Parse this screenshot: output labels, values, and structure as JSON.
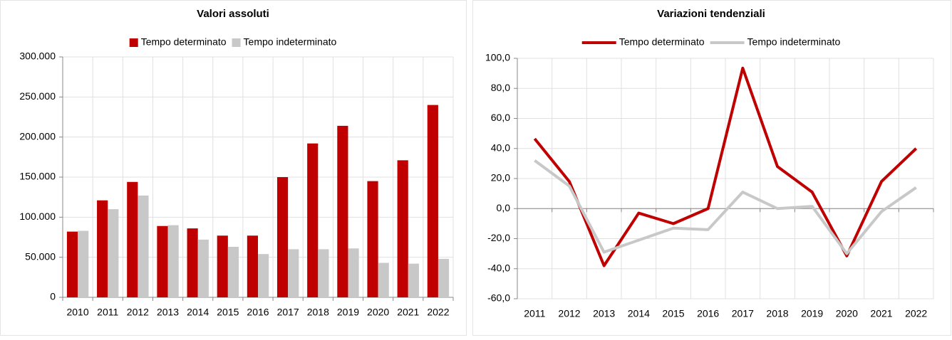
{
  "chart_data": [
    {
      "type": "bar",
      "title": "Valori assoluti",
      "categories": [
        "2010",
        "2011",
        "2012",
        "2013",
        "2014",
        "2015",
        "2016",
        "2017",
        "2018",
        "2019",
        "2020",
        "2021",
        "2022"
      ],
      "series": [
        {
          "name": "Tempo determinato",
          "color": "#c00000",
          "values": [
            82000,
            121000,
            144000,
            89000,
            86000,
            77000,
            77000,
            150000,
            192000,
            214000,
            145000,
            171000,
            240000
          ]
        },
        {
          "name": "Tempo indeterminato",
          "color": "#c8c8c8",
          "values": [
            83000,
            110000,
            127000,
            90000,
            72000,
            63000,
            54000,
            60000,
            60000,
            61000,
            43000,
            42000,
            48000
          ]
        }
      ],
      "ylim": [
        0,
        300000
      ],
      "yticks": [
        0,
        {
          "value": 50000,
          "label": "50.000"
        },
        {
          "value": 100000,
          "label": "100.000"
        },
        {
          "value": 150000,
          "label": "150.000"
        },
        {
          "value": 200000,
          "label": "200.000"
        },
        {
          "value": 250000,
          "label": "250.000"
        },
        {
          "value": 300000,
          "label": "300.000"
        }
      ],
      "grid": true
    },
    {
      "type": "line",
      "title": "Variazioni tendenziali",
      "categories": [
        "2011",
        "2012",
        "2013",
        "2014",
        "2015",
        "2016",
        "2017",
        "2018",
        "2019",
        "2020",
        "2021",
        "2022"
      ],
      "series": [
        {
          "name": "Tempo determinato",
          "color": "#c00000",
          "values": [
            46.5,
            18,
            -38,
            -3,
            -10,
            0,
            93.5,
            28,
            11,
            -31.5,
            18,
            40
          ]
        },
        {
          "name": "Tempo indeterminato",
          "color": "#c8c8c8",
          "values": [
            32,
            15,
            -29,
            -21,
            -13,
            -14,
            11,
            0,
            1.5,
            -30,
            -2,
            14
          ]
        }
      ],
      "ylim": [
        -60,
        100
      ],
      "yticks": [
        {
          "value": -60,
          "label": "-60,0"
        },
        {
          "value": -40,
          "label": "-40,0"
        },
        {
          "value": -20,
          "label": "-20,0"
        },
        {
          "value": 0,
          "label": "0,0"
        },
        {
          "value": 20,
          "label": "20,0"
        },
        {
          "value": 40,
          "label": "40,0"
        },
        {
          "value": 60,
          "label": "60,0"
        },
        {
          "value": 80,
          "label": "80,0"
        },
        {
          "value": 100,
          "label": "100,0"
        }
      ],
      "grid": true
    }
  ]
}
